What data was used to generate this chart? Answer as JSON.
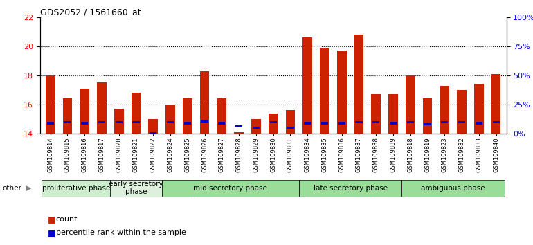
{
  "title": "GDS2052 / 1561660_at",
  "samples": [
    "GSM109814",
    "GSM109815",
    "GSM109816",
    "GSM109817",
    "GSM109820",
    "GSM109821",
    "GSM109822",
    "GSM109824",
    "GSM109825",
    "GSM109826",
    "GSM109827",
    "GSM109828",
    "GSM109829",
    "GSM109830",
    "GSM109831",
    "GSM109834",
    "GSM109835",
    "GSM109836",
    "GSM109837",
    "GSM109838",
    "GSM109839",
    "GSM109818",
    "GSM109819",
    "GSM109823",
    "GSM109832",
    "GSM109833",
    "GSM109840"
  ],
  "count_values": [
    18.0,
    16.4,
    17.1,
    17.5,
    15.7,
    16.8,
    15.0,
    16.0,
    16.4,
    18.3,
    16.4,
    14.1,
    15.0,
    15.4,
    15.6,
    20.6,
    19.9,
    19.7,
    20.8,
    16.7,
    16.7,
    18.0,
    16.4,
    17.3,
    17.0,
    17.4,
    18.1
  ],
  "percentile_values": [
    14.72,
    14.78,
    14.72,
    14.78,
    14.78,
    14.78,
    14.0,
    14.78,
    14.72,
    14.85,
    14.72,
    14.5,
    14.4,
    14.78,
    14.4,
    14.72,
    14.72,
    14.72,
    14.78,
    14.78,
    14.72,
    14.78,
    14.65,
    14.78,
    14.78,
    14.72,
    14.78
  ],
  "phases": [
    {
      "label": "proliferative phase",
      "start": 0,
      "end": 4,
      "color": "#cceecc"
    },
    {
      "label": "early secretory\nphase",
      "start": 4,
      "end": 7,
      "color": "#ddf0dd"
    },
    {
      "label": "mid secretory phase",
      "start": 7,
      "end": 15,
      "color": "#99dd99"
    },
    {
      "label": "late secretory phase",
      "start": 15,
      "end": 21,
      "color": "#99dd99"
    },
    {
      "label": "ambiguous phase",
      "start": 21,
      "end": 27,
      "color": "#99dd99"
    }
  ],
  "ylim_left": [
    14,
    22
  ],
  "yticks_left": [
    14,
    16,
    18,
    20,
    22
  ],
  "ylim_right": [
    0,
    100
  ],
  "yticks_right": [
    0,
    25,
    50,
    75,
    100
  ],
  "bar_color_red": "#cc2200",
  "bar_color_blue": "#0000cc",
  "bar_width": 0.55,
  "background_color": "#ffffff",
  "tick_label_fontsize": 6.0,
  "phase_label_fontsize": 7.5
}
